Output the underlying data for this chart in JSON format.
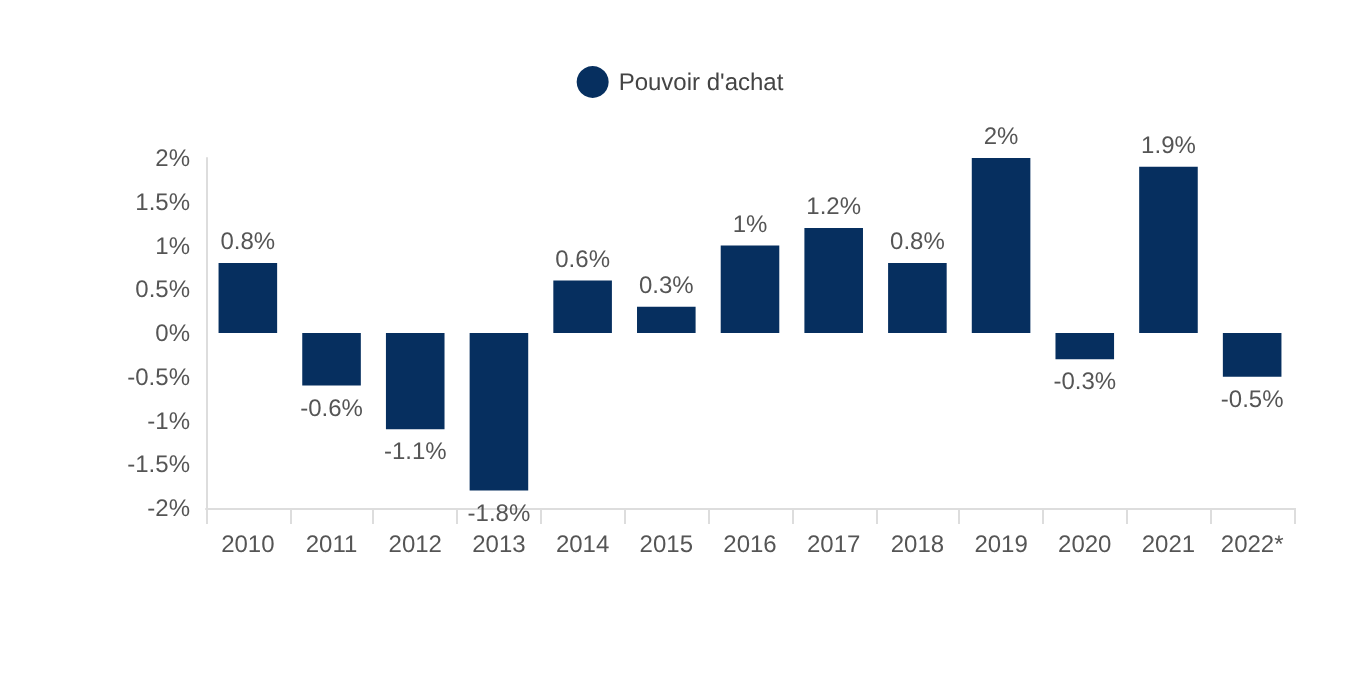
{
  "chart_data": {
    "type": "bar",
    "categories": [
      "2010",
      "2011",
      "2012",
      "2013",
      "2014",
      "2015",
      "2016",
      "2017",
      "2018",
      "2019",
      "2020",
      "2021",
      "2022*"
    ],
    "series": [
      {
        "name": "Pouvoir d'achat",
        "color": "#062f5f",
        "values": [
          0.8,
          -0.6,
          -1.1,
          -1.8,
          0.6,
          0.3,
          1,
          1.2,
          0.8,
          2,
          -0.3,
          1.9,
          -0.5
        ],
        "value_labels": [
          "0.8%",
          "-0.6%",
          "-1.1%",
          "-1.8%",
          "0.6%",
          "0.3%",
          "1%",
          "1.2%",
          "0.8%",
          "2%",
          "-0.3%",
          "1.9%",
          "-0.5%"
        ]
      }
    ],
    "ylim": [
      -2,
      2
    ],
    "yticks": [
      {
        "value": -2,
        "label": "-2%"
      },
      {
        "value": -1.5,
        "label": "-1.5%"
      },
      {
        "value": -1,
        "label": "-1%"
      },
      {
        "value": -0.5,
        "label": "-0.5%"
      },
      {
        "value": 0,
        "label": "0%"
      },
      {
        "value": 0.5,
        "label": "0.5%"
      },
      {
        "value": 1,
        "label": "1%"
      },
      {
        "value": 1.5,
        "label": "1.5%"
      },
      {
        "value": 2,
        "label": "2%"
      }
    ],
    "grid": false,
    "legend": "top"
  }
}
